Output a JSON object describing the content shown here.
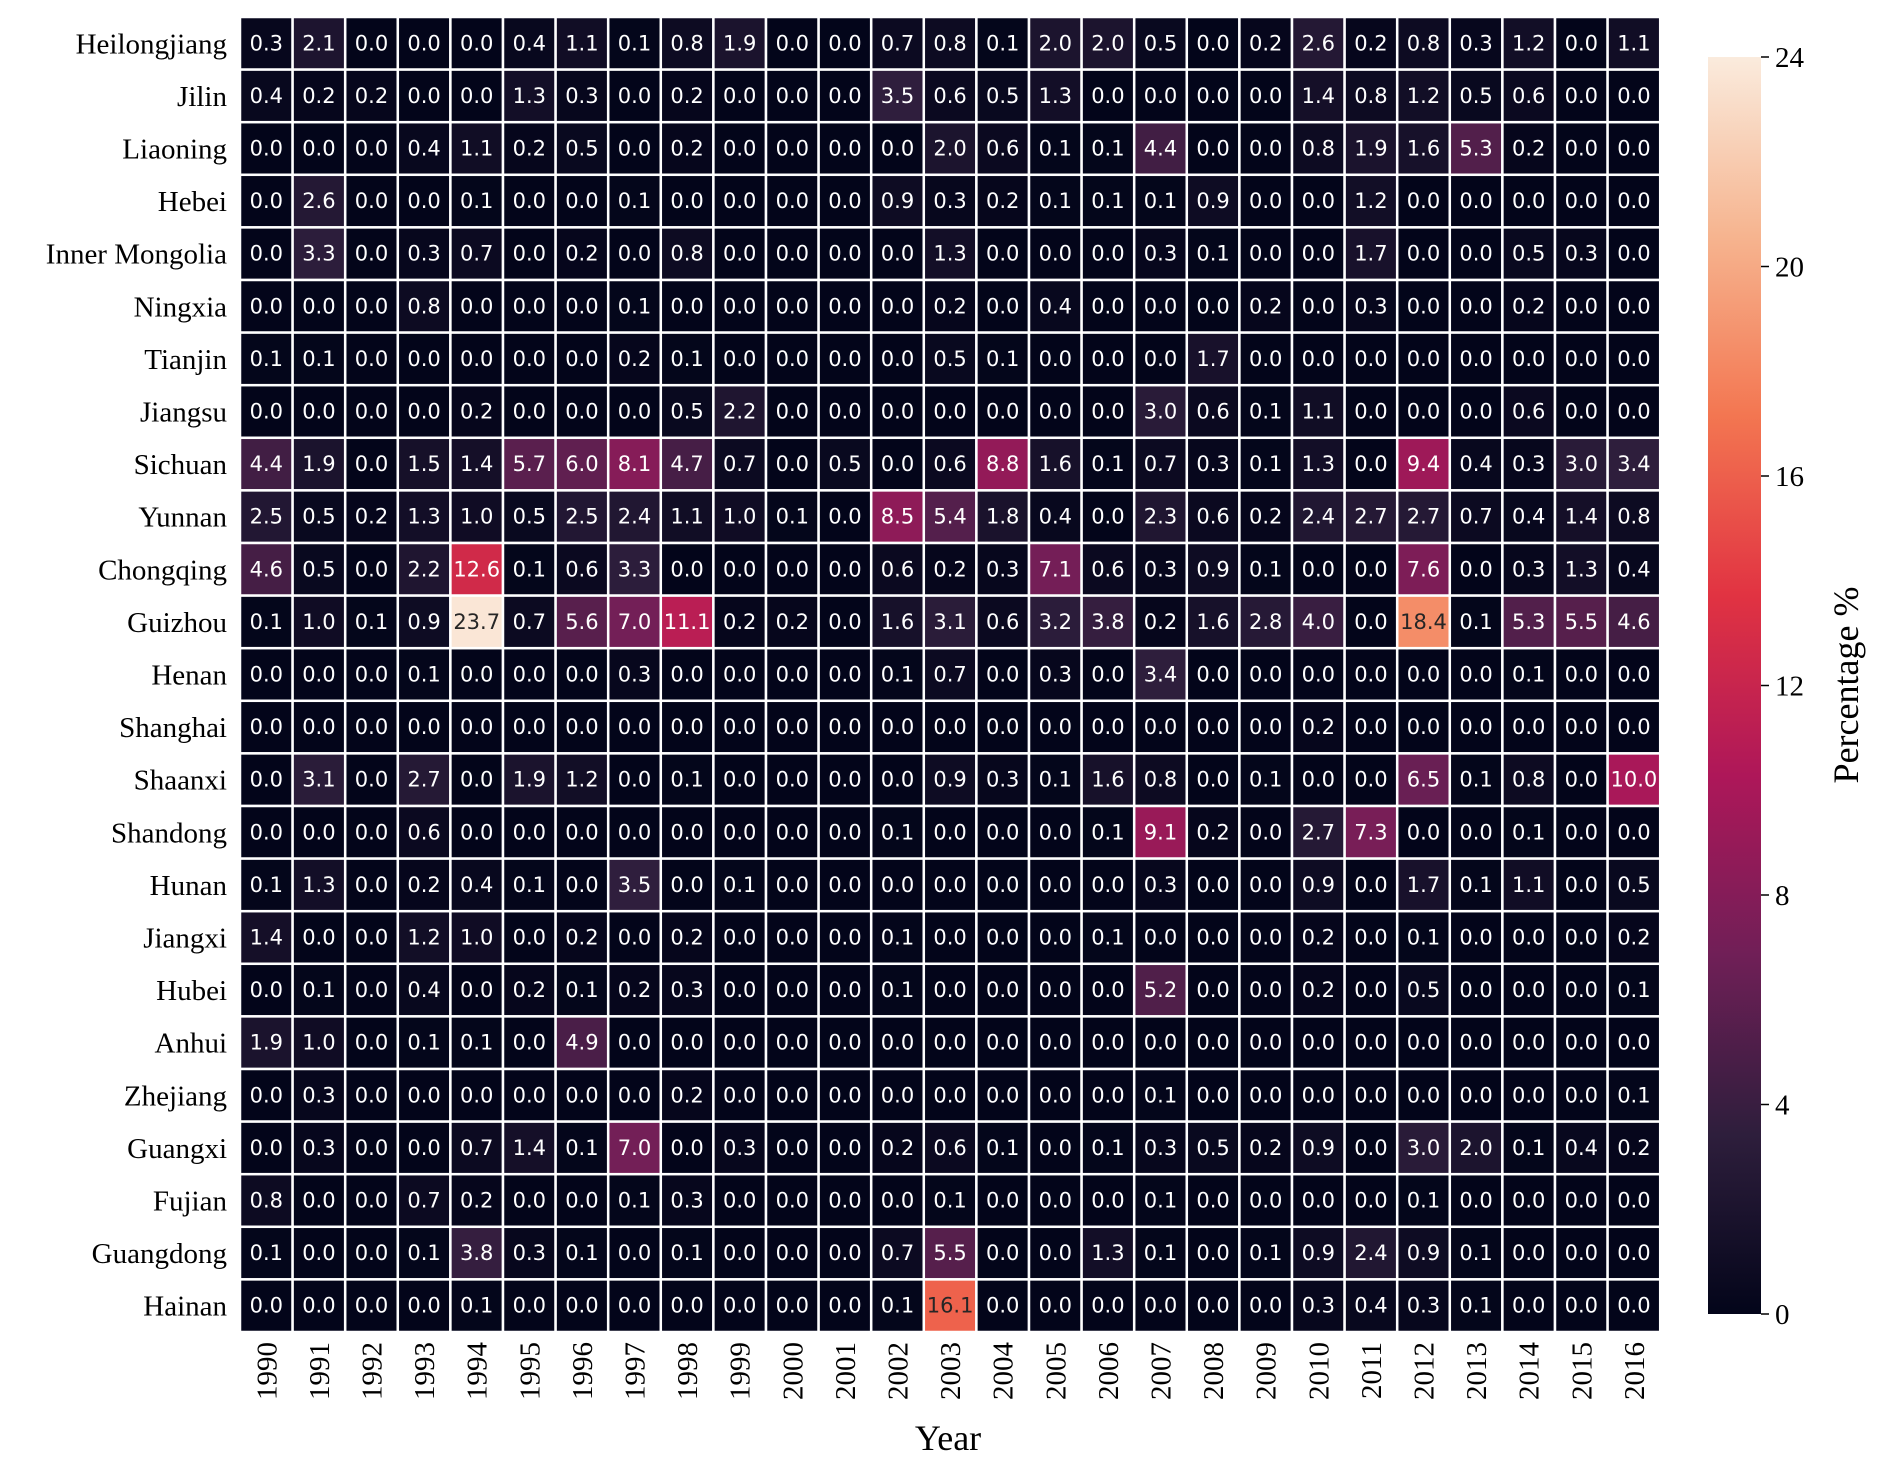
{
  "chart_data": {
    "type": "heatmap",
    "xlabel": "Year",
    "ylabel": "",
    "colorbar_label": "Percentage  %",
    "colorbar_ticks": [
      0,
      4,
      8,
      12,
      16,
      20,
      24
    ],
    "vmin": 0,
    "vmax": 24,
    "x": [
      "1990",
      "1991",
      "1992",
      "1993",
      "1994",
      "1995",
      "1996",
      "1997",
      "1998",
      "1999",
      "2000",
      "2001",
      "2002",
      "2003",
      "2004",
      "2005",
      "2006",
      "2007",
      "2008",
      "2009",
      "2010",
      "2011",
      "2012",
      "2013",
      "2014",
      "2015",
      "2016"
    ],
    "y": [
      "Heilongjiang",
      "Jilin",
      "Liaoning",
      "Hebei",
      "Inner Mongolia",
      "Ningxia",
      "Tianjin",
      "Jiangsu",
      "Sichuan",
      "Yunnan",
      "Chongqing",
      "Guizhou",
      "Henan",
      "Shanghai",
      "Shaanxi",
      "Shandong",
      "Hunan",
      "Jiangxi",
      "Hubei",
      "Anhui",
      "Zhejiang",
      "Guangxi",
      "Fujian",
      "Guangdong",
      "Hainan"
    ],
    "values": [
      [
        0.3,
        2.1,
        0.0,
        0.0,
        0.0,
        0.4,
        1.1,
        0.1,
        0.8,
        1.9,
        0.0,
        0.0,
        0.7,
        0.8,
        0.1,
        2.0,
        2.0,
        0.5,
        0.0,
        0.2,
        2.6,
        0.2,
        0.8,
        0.3,
        1.2,
        0.0,
        1.1
      ],
      [
        0.4,
        0.2,
        0.2,
        0.0,
        0.0,
        1.3,
        0.3,
        0.0,
        0.2,
        0.0,
        0.0,
        0.0,
        3.5,
        0.6,
        0.5,
        1.3,
        0.0,
        0.0,
        0.0,
        0.0,
        1.4,
        0.8,
        1.2,
        0.5,
        0.6,
        0.0,
        0.0
      ],
      [
        0.0,
        0.0,
        0.0,
        0.4,
        1.1,
        0.2,
        0.5,
        0.0,
        0.2,
        0.0,
        0.0,
        0.0,
        0.0,
        2.0,
        0.6,
        0.1,
        0.1,
        4.4,
        0.0,
        0.0,
        0.8,
        1.9,
        1.6,
        5.3,
        0.2,
        0.0,
        0.0
      ],
      [
        0.0,
        2.6,
        0.0,
        0.0,
        0.1,
        0.0,
        0.0,
        0.1,
        0.0,
        0.0,
        0.0,
        0.0,
        0.9,
        0.3,
        0.2,
        0.1,
        0.1,
        0.1,
        0.9,
        0.0,
        0.0,
        1.2,
        0.0,
        0.0,
        0.0,
        0.0,
        0.0
      ],
      [
        0.0,
        3.3,
        0.0,
        0.3,
        0.7,
        0.0,
        0.2,
        0.0,
        0.8,
        0.0,
        0.0,
        0.0,
        0.0,
        1.3,
        0.0,
        0.0,
        0.0,
        0.3,
        0.1,
        0.0,
        0.0,
        1.7,
        0.0,
        0.0,
        0.5,
        0.3,
        0.0
      ],
      [
        0.0,
        0.0,
        0.0,
        0.8,
        0.0,
        0.0,
        0.0,
        0.1,
        0.0,
        0.0,
        0.0,
        0.0,
        0.0,
        0.2,
        0.0,
        0.4,
        0.0,
        0.0,
        0.0,
        0.2,
        0.0,
        0.3,
        0.0,
        0.0,
        0.2,
        0.0,
        0.0
      ],
      [
        0.1,
        0.1,
        0.0,
        0.0,
        0.0,
        0.0,
        0.0,
        0.2,
        0.1,
        0.0,
        0.0,
        0.0,
        0.0,
        0.5,
        0.1,
        0.0,
        0.0,
        0.0,
        1.7,
        0.0,
        0.0,
        0.0,
        0.0,
        0.0,
        0.0,
        0.0,
        0.0
      ],
      [
        0.0,
        0.0,
        0.0,
        0.0,
        0.2,
        0.0,
        0.0,
        0.0,
        0.5,
        2.2,
        0.0,
        0.0,
        0.0,
        0.0,
        0.0,
        0.0,
        0.0,
        3.0,
        0.6,
        0.1,
        1.1,
        0.0,
        0.0,
        0.0,
        0.6,
        0.0,
        0.0
      ],
      [
        4.4,
        1.9,
        0.0,
        1.5,
        1.4,
        5.7,
        6.0,
        8.1,
        4.7,
        0.7,
        0.0,
        0.5,
        0.0,
        0.6,
        8.8,
        1.6,
        0.1,
        0.7,
        0.3,
        0.1,
        1.3,
        0.0,
        9.4,
        0.4,
        0.3,
        3.0,
        3.4
      ],
      [
        2.5,
        0.5,
        0.2,
        1.3,
        1.0,
        0.5,
        2.5,
        2.4,
        1.1,
        1.0,
        0.1,
        0.0,
        8.5,
        5.4,
        1.8,
        0.4,
        0.0,
        2.3,
        0.6,
        0.2,
        2.4,
        2.7,
        2.7,
        0.7,
        0.4,
        1.4,
        0.8
      ],
      [
        4.6,
        0.5,
        0.0,
        2.2,
        12.6,
        0.1,
        0.6,
        3.3,
        0.0,
        0.0,
        0.0,
        0.0,
        0.6,
        0.2,
        0.3,
        7.1,
        0.6,
        0.3,
        0.9,
        0.1,
        0.0,
        0.0,
        7.6,
        0.0,
        0.3,
        1.3,
        0.4
      ],
      [
        0.1,
        1.0,
        0.1,
        0.9,
        23.7,
        0.7,
        5.6,
        7.0,
        11.1,
        0.2,
        0.2,
        0.0,
        1.6,
        3.1,
        0.6,
        3.2,
        3.8,
        0.2,
        1.6,
        2.8,
        4.0,
        0.0,
        18.4,
        0.1,
        5.3,
        5.5,
        4.6
      ],
      [
        0.0,
        0.0,
        0.0,
        0.1,
        0.0,
        0.0,
        0.0,
        0.3,
        0.0,
        0.0,
        0.0,
        0.0,
        0.1,
        0.7,
        0.0,
        0.3,
        0.0,
        3.4,
        0.0,
        0.0,
        0.0,
        0.0,
        0.0,
        0.0,
        0.1,
        0.0,
        0.0
      ],
      [
        0.0,
        0.0,
        0.0,
        0.0,
        0.0,
        0.0,
        0.0,
        0.0,
        0.0,
        0.0,
        0.0,
        0.0,
        0.0,
        0.0,
        0.0,
        0.0,
        0.0,
        0.0,
        0.0,
        0.0,
        0.2,
        0.0,
        0.0,
        0.0,
        0.0,
        0.0,
        0.0
      ],
      [
        0.0,
        3.1,
        0.0,
        2.7,
        0.0,
        1.9,
        1.2,
        0.0,
        0.1,
        0.0,
        0.0,
        0.0,
        0.0,
        0.9,
        0.3,
        0.1,
        1.6,
        0.8,
        0.0,
        0.1,
        0.0,
        0.0,
        6.5,
        0.1,
        0.8,
        0.0,
        10.0
      ],
      [
        0.0,
        0.0,
        0.0,
        0.6,
        0.0,
        0.0,
        0.0,
        0.0,
        0.0,
        0.0,
        0.0,
        0.0,
        0.1,
        0.0,
        0.0,
        0.0,
        0.1,
        9.1,
        0.2,
        0.0,
        2.7,
        7.3,
        0.0,
        0.0,
        0.1,
        0.0,
        0.0
      ],
      [
        0.1,
        1.3,
        0.0,
        0.2,
        0.4,
        0.1,
        0.0,
        3.5,
        0.0,
        0.1,
        0.0,
        0.0,
        0.0,
        0.0,
        0.0,
        0.0,
        0.0,
        0.3,
        0.0,
        0.0,
        0.9,
        0.0,
        1.7,
        0.1,
        1.1,
        0.0,
        0.5
      ],
      [
        1.4,
        0.0,
        0.0,
        1.2,
        1.0,
        0.0,
        0.2,
        0.0,
        0.2,
        0.0,
        0.0,
        0.0,
        0.1,
        0.0,
        0.0,
        0.0,
        0.1,
        0.0,
        0.0,
        0.0,
        0.2,
        0.0,
        0.1,
        0.0,
        0.0,
        0.0,
        0.2
      ],
      [
        0.0,
        0.1,
        0.0,
        0.4,
        0.0,
        0.2,
        0.1,
        0.2,
        0.3,
        0.0,
        0.0,
        0.0,
        0.1,
        0.0,
        0.0,
        0.0,
        0.0,
        5.2,
        0.0,
        0.0,
        0.2,
        0.0,
        0.5,
        0.0,
        0.0,
        0.0,
        0.1
      ],
      [
        1.9,
        1.0,
        0.0,
        0.1,
        0.1,
        0.0,
        4.9,
        0.0,
        0.0,
        0.0,
        0.0,
        0.0,
        0.0,
        0.0,
        0.0,
        0.0,
        0.0,
        0.0,
        0.0,
        0.0,
        0.0,
        0.0,
        0.0,
        0.0,
        0.0,
        0.0,
        0.0
      ],
      [
        0.0,
        0.3,
        0.0,
        0.0,
        0.0,
        0.0,
        0.0,
        0.0,
        0.2,
        0.0,
        0.0,
        0.0,
        0.0,
        0.0,
        0.0,
        0.0,
        0.0,
        0.1,
        0.0,
        0.0,
        0.0,
        0.0,
        0.0,
        0.0,
        0.0,
        0.0,
        0.1
      ],
      [
        0.0,
        0.3,
        0.0,
        0.0,
        0.7,
        1.4,
        0.1,
        7.0,
        0.0,
        0.3,
        0.0,
        0.0,
        0.2,
        0.6,
        0.1,
        0.0,
        0.1,
        0.3,
        0.5,
        0.2,
        0.9,
        0.0,
        3.0,
        2.0,
        0.1,
        0.4,
        0.2
      ],
      [
        0.8,
        0.0,
        0.0,
        0.7,
        0.2,
        0.0,
        0.0,
        0.1,
        0.3,
        0.0,
        0.0,
        0.0,
        0.0,
        0.1,
        0.0,
        0.0,
        0.0,
        0.1,
        0.0,
        0.0,
        0.0,
        0.0,
        0.1,
        0.0,
        0.0,
        0.0,
        0.0
      ],
      [
        0.1,
        0.0,
        0.0,
        0.1,
        3.8,
        0.3,
        0.1,
        0.0,
        0.1,
        0.0,
        0.0,
        0.0,
        0.7,
        5.5,
        0.0,
        0.0,
        1.3,
        0.1,
        0.0,
        0.1,
        0.9,
        2.4,
        0.9,
        0.1,
        0.0,
        0.0,
        0.0
      ],
      [
        0.0,
        0.0,
        0.0,
        0.0,
        0.1,
        0.0,
        0.0,
        0.0,
        0.0,
        0.0,
        0.0,
        0.0,
        0.1,
        16.1,
        0.0,
        0.0,
        0.0,
        0.0,
        0.0,
        0.0,
        0.3,
        0.4,
        0.3,
        0.1,
        0.0,
        0.0,
        0.0
      ]
    ],
    "grid": false,
    "colormap": "rocket",
    "colormap_stops": [
      "#03051a",
      "#2e1e3c",
      "#701f57",
      "#ae1759",
      "#e13342",
      "#f37651",
      "#f6b48f",
      "#faebdd"
    ]
  }
}
